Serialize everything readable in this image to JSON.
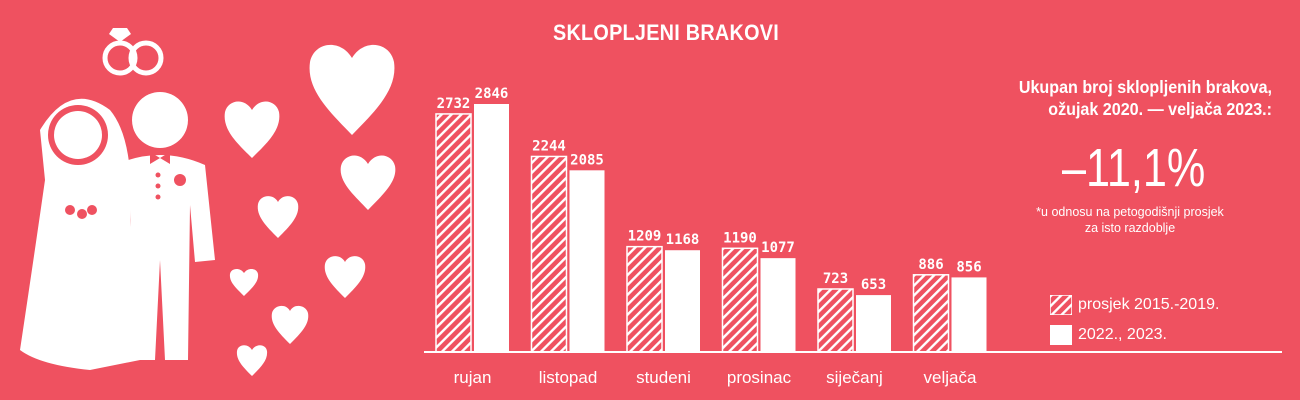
{
  "colors": {
    "background": "#ef5160",
    "bars": "#ffffff"
  },
  "icons": [
    "rings-icon",
    "bride-icon",
    "groom-icon",
    "heart-icon"
  ],
  "chart_data": {
    "type": "bar",
    "title": "SKLOPLJENI BRAKOVI",
    "categories": [
      "rujan",
      "listopad",
      "studeni",
      "prosinac",
      "siječanj",
      "veljača"
    ],
    "series": [
      {
        "name": "prosjek 2015.-2019.",
        "pattern": "hatched",
        "values": [
          2732,
          2244,
          1209,
          1190,
          723,
          886
        ]
      },
      {
        "name": "2022., 2023.",
        "pattern": "solid",
        "values": [
          2846,
          2085,
          1168,
          1077,
          653,
          856
        ]
      }
    ],
    "ylim": [
      0,
      2846
    ],
    "grid": false,
    "legend_position": "bottom-right"
  },
  "summary": {
    "heading_line1": "Ukupan broj sklopljenih brakova,",
    "heading_line2": "ožujak 2020. — veljača 2023.:",
    "change": "–11,1%",
    "note_line1": "*u odnosu na petogodišnji prosjek",
    "note_line2": "za isto razdoblje"
  }
}
